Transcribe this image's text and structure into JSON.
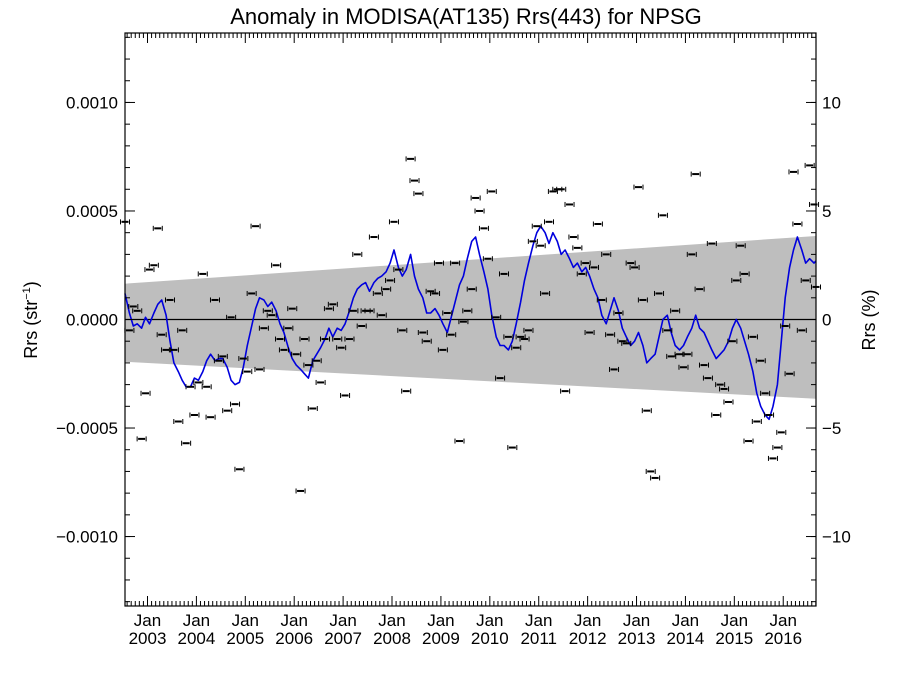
{
  "chart_data": {
    "type": "scatter",
    "title": "Anomaly in MODISA(AT135) Rrs(443) for NPSG",
    "ylabel_left_base": "Rrs (str",
    "ylabel_left_sup": "−1",
    "ylabel_left_close": ")",
    "ylabel_right": "Rrs (%)",
    "ylim_left": [
      -0.00132,
      0.00132
    ],
    "ylim_right": [
      -13.2,
      13.2
    ],
    "xlim": [
      2002.54,
      2016.67
    ],
    "y_ticks_left": [
      {
        "v": 0.001,
        "label": "0.0010"
      },
      {
        "v": 0.0005,
        "label": "0.0005"
      },
      {
        "v": 0.0,
        "label": "0.0000"
      },
      {
        "v": -0.0005,
        "label": "−0.0005"
      },
      {
        "v": -0.001,
        "label": "−0.0010"
      }
    ],
    "y_ticks_right": [
      {
        "v": 10,
        "label": "10"
      },
      {
        "v": 5,
        "label": "5"
      },
      {
        "v": 0,
        "label": "0"
      },
      {
        "v": -5,
        "label": "−5"
      },
      {
        "v": -10,
        "label": "−10"
      }
    ],
    "x_ticks": [
      {
        "x": 2003.0,
        "month": "Jan",
        "year": "2003"
      },
      {
        "x": 2004.0,
        "month": "Jan",
        "year": "2004"
      },
      {
        "x": 2005.0,
        "month": "Jan",
        "year": "2005"
      },
      {
        "x": 2006.0,
        "month": "Jan",
        "year": "2006"
      },
      {
        "x": 2007.0,
        "month": "Jan",
        "year": "2007"
      },
      {
        "x": 2008.0,
        "month": "Jan",
        "year": "2008"
      },
      {
        "x": 2009.0,
        "month": "Jan",
        "year": "2009"
      },
      {
        "x": 2010.0,
        "month": "Jan",
        "year": "2010"
      },
      {
        "x": 2011.0,
        "month": "Jan",
        "year": "2011"
      },
      {
        "x": 2012.0,
        "month": "Jan",
        "year": "2012"
      },
      {
        "x": 2013.0,
        "month": "Jan",
        "year": "2013"
      },
      {
        "x": 2014.0,
        "month": "Jan",
        "year": "2014"
      },
      {
        "x": 2015.0,
        "month": "Jan",
        "year": "2015"
      },
      {
        "x": 2016.0,
        "month": "Jan",
        "year": "2016"
      }
    ],
    "band": {
      "upper": [
        [
          2002.54,
          0.000165
        ],
        [
          2016.67,
          0.000385
        ]
      ],
      "lower": [
        [
          2002.54,
          -0.000195
        ],
        [
          2016.67,
          -0.000365
        ]
      ],
      "color": "#bebebe"
    },
    "zero_line": 0.0,
    "grid": false,
    "legend": "none",
    "colors": {
      "points": "#000000",
      "line": "#0000dd",
      "band": "#bebebe"
    },
    "points": [
      [
        2002.54,
        0.00045
      ],
      [
        2002.63,
        -5e-05
      ],
      [
        2002.71,
        6e-05
      ],
      [
        2002.79,
        4e-05
      ],
      [
        2002.88,
        -0.00055
      ],
      [
        2002.96,
        -0.00034
      ],
      [
        2003.04,
        0.00023
      ],
      [
        2003.13,
        0.00025
      ],
      [
        2003.21,
        0.00042
      ],
      [
        2003.29,
        -7e-05
      ],
      [
        2003.38,
        -0.00014
      ],
      [
        2003.46,
        9e-05
      ],
      [
        2003.54,
        -0.00014
      ],
      [
        2003.63,
        -0.00047
      ],
      [
        2003.71,
        -5e-05
      ],
      [
        2003.79,
        -0.00057
      ],
      [
        2003.88,
        -0.00031
      ],
      [
        2003.96,
        -0.00044
      ],
      [
        2004.04,
        -0.00029
      ],
      [
        2004.13,
        0.00021
      ],
      [
        2004.21,
        -0.00031
      ],
      [
        2004.29,
        -0.00045
      ],
      [
        2004.38,
        9e-05
      ],
      [
        2004.46,
        -0.00019
      ],
      [
        2004.54,
        -0.00017
      ],
      [
        2004.63,
        -0.00042
      ],
      [
        2004.71,
        1e-05
      ],
      [
        2004.79,
        -0.00039
      ],
      [
        2004.88,
        -0.00069
      ],
      [
        2004.96,
        -0.00018
      ],
      [
        2005.04,
        -0.00024
      ],
      [
        2005.13,
        0.00012
      ],
      [
        2005.21,
        0.00043
      ],
      [
        2005.29,
        -0.00023
      ],
      [
        2005.38,
        -4e-05
      ],
      [
        2005.46,
        4e-05
      ],
      [
        2005.54,
        2e-05
      ],
      [
        2005.63,
        0.00025
      ],
      [
        2005.71,
        -9e-05
      ],
      [
        2005.79,
        -0.00014
      ],
      [
        2005.88,
        -4e-05
      ],
      [
        2005.96,
        5e-05
      ],
      [
        2006.04,
        -0.00016
      ],
      [
        2006.13,
        -0.00079
      ],
      [
        2006.21,
        -9e-05
      ],
      [
        2006.29,
        -0.00021
      ],
      [
        2006.38,
        -0.00041
      ],
      [
        2006.46,
        -0.00019
      ],
      [
        2006.54,
        -0.00029
      ],
      [
        2006.63,
        -9e-05
      ],
      [
        2006.71,
        5e-05
      ],
      [
        2006.79,
        7e-05
      ],
      [
        2006.88,
        -9e-05
      ],
      [
        2006.96,
        -0.00013
      ],
      [
        2007.04,
        -0.00035
      ],
      [
        2007.13,
        -9e-05
      ],
      [
        2007.21,
        4e-05
      ],
      [
        2007.29,
        0.0003
      ],
      [
        2007.38,
        -3e-05
      ],
      [
        2007.46,
        4e-05
      ],
      [
        2007.54,
        4e-05
      ],
      [
        2007.63,
        0.00038
      ],
      [
        2007.71,
        0.00012
      ],
      [
        2007.79,
        2e-05
      ],
      [
        2007.88,
        0.00014
      ],
      [
        2007.96,
        0.00018
      ],
      [
        2008.04,
        0.00045
      ],
      [
        2008.13,
        0.00023
      ],
      [
        2008.21,
        -5e-05
      ],
      [
        2008.29,
        -0.00033
      ],
      [
        2008.38,
        0.00074
      ],
      [
        2008.46,
        0.00064
      ],
      [
        2008.54,
        0.00058
      ],
      [
        2008.63,
        -6e-05
      ],
      [
        2008.71,
        -0.0001
      ],
      [
        2008.79,
        0.00013
      ],
      [
        2008.88,
        0.00012
      ],
      [
        2008.96,
        0.00026
      ],
      [
        2009.04,
        -0.00014
      ],
      [
        2009.13,
        3e-05
      ],
      [
        2009.21,
        -7e-05
      ],
      [
        2009.29,
        0.00026
      ],
      [
        2009.38,
        -0.00056
      ],
      [
        2009.46,
        -1e-05
      ],
      [
        2009.54,
        4e-05
      ],
      [
        2009.63,
        0.00014
      ],
      [
        2009.71,
        0.00056
      ],
      [
        2009.79,
        0.0005
      ],
      [
        2009.88,
        0.00042
      ],
      [
        2009.96,
        0.00028
      ],
      [
        2010.04,
        0.00059
      ],
      [
        2010.13,
        1e-05
      ],
      [
        2010.21,
        -0.00027
      ],
      [
        2010.29,
        0.00021
      ],
      [
        2010.38,
        -8e-05
      ],
      [
        2010.46,
        -0.00059
      ],
      [
        2010.54,
        -0.00013
      ],
      [
        2010.63,
        -8e-05
      ],
      [
        2010.71,
        -9e-05
      ],
      [
        2010.79,
        -5e-05
      ],
      [
        2010.88,
        0.00036
      ],
      [
        2010.96,
        0.00043
      ],
      [
        2011.04,
        0.00034
      ],
      [
        2011.13,
        0.00012
      ],
      [
        2011.21,
        0.00045
      ],
      [
        2011.29,
        0.00059
      ],
      [
        2011.38,
        0.0006
      ],
      [
        2011.46,
        0.0006
      ],
      [
        2011.54,
        -0.00033
      ],
      [
        2011.63,
        0.00053
      ],
      [
        2011.71,
        0.00038
      ],
      [
        2011.79,
        0.00033
      ],
      [
        2011.88,
        0.00021
      ],
      [
        2011.96,
        0.00026
      ],
      [
        2012.04,
        -6e-05
      ],
      [
        2012.13,
        0.00024
      ],
      [
        2012.21,
        0.00044
      ],
      [
        2012.29,
        9e-05
      ],
      [
        2012.38,
        0.0003
      ],
      [
        2012.46,
        -7e-05
      ],
      [
        2012.54,
        -0.00023
      ],
      [
        2012.63,
        3e-05
      ],
      [
        2012.71,
        -0.0001
      ],
      [
        2012.79,
        -0.00011
      ],
      [
        2012.88,
        0.00026
      ],
      [
        2012.96,
        0.00024
      ],
      [
        2013.04,
        0.00061
      ],
      [
        2013.13,
        9e-05
      ],
      [
        2013.21,
        -0.00042
      ],
      [
        2013.29,
        -0.0007
      ],
      [
        2013.38,
        -0.00073
      ],
      [
        2013.46,
        0.00012
      ],
      [
        2013.54,
        0.00048
      ],
      [
        2013.63,
        -5e-05
      ],
      [
        2013.71,
        -0.00017
      ],
      [
        2013.79,
        4e-05
      ],
      [
        2013.88,
        -0.00016
      ],
      [
        2013.96,
        -0.00022
      ],
      [
        2014.04,
        -0.00016
      ],
      [
        2014.13,
        0.0003
      ],
      [
        2014.21,
        0.00067
      ],
      [
        2014.29,
        0.00014
      ],
      [
        2014.38,
        -0.00021
      ],
      [
        2014.46,
        -0.00027
      ],
      [
        2014.54,
        0.00035
      ],
      [
        2014.63,
        -0.00044
      ],
      [
        2014.71,
        -0.0003
      ],
      [
        2014.79,
        -0.00032
      ],
      [
        2014.88,
        -0.00038
      ],
      [
        2014.96,
        -0.0001
      ],
      [
        2015.04,
        0.00018
      ],
      [
        2015.13,
        0.00034
      ],
      [
        2015.21,
        0.00021
      ],
      [
        2015.29,
        -0.00056
      ],
      [
        2015.38,
        -8e-05
      ],
      [
        2015.46,
        -0.00047
      ],
      [
        2015.54,
        -0.00019
      ],
      [
        2015.63,
        -0.00034
      ],
      [
        2015.71,
        -0.00044
      ],
      [
        2015.79,
        -0.00064
      ],
      [
        2015.88,
        -0.00059
      ],
      [
        2015.96,
        -0.00052
      ],
      [
        2016.04,
        -3e-05
      ],
      [
        2016.13,
        -0.00025
      ],
      [
        2016.21,
        0.00068
      ],
      [
        2016.29,
        0.00044
      ],
      [
        2016.38,
        -5e-05
      ],
      [
        2016.46,
        0.00018
      ],
      [
        2016.54,
        0.00071
      ],
      [
        2016.63,
        0.00053
      ],
      [
        2016.67,
        0.00015
      ]
    ],
    "smoothed_line": [
      [
        2002.54,
        0.00012
      ],
      [
        2002.63,
        3e-05
      ],
      [
        2002.71,
        -3e-05
      ],
      [
        2002.79,
        -2e-05
      ],
      [
        2002.88,
        -4e-05
      ],
      [
        2002.96,
        1e-05
      ],
      [
        2003.04,
        -2e-05
      ],
      [
        2003.13,
        3e-05
      ],
      [
        2003.21,
        7e-05
      ],
      [
        2003.29,
        9e-05
      ],
      [
        2003.38,
        2e-05
      ],
      [
        2003.46,
        -0.0001
      ],
      [
        2003.54,
        -0.0002
      ],
      [
        2003.63,
        -0.00024
      ],
      [
        2003.71,
        -0.00028
      ],
      [
        2003.79,
        -0.00031
      ],
      [
        2003.88,
        -0.00031
      ],
      [
        2003.96,
        -0.00027
      ],
      [
        2004.04,
        -0.00028
      ],
      [
        2004.13,
        -0.00024
      ],
      [
        2004.21,
        -0.00019
      ],
      [
        2004.29,
        -0.00016
      ],
      [
        2004.38,
        -0.00019
      ],
      [
        2004.46,
        -0.00018
      ],
      [
        2004.54,
        -0.00018
      ],
      [
        2004.63,
        -0.00022
      ],
      [
        2004.71,
        -0.00028
      ],
      [
        2004.79,
        -0.0003
      ],
      [
        2004.88,
        -0.00029
      ],
      [
        2004.96,
        -0.00022
      ],
      [
        2005.04,
        -0.00012
      ],
      [
        2005.13,
        -3e-05
      ],
      [
        2005.21,
        5e-05
      ],
      [
        2005.29,
        0.0001
      ],
      [
        2005.38,
        9e-05
      ],
      [
        2005.46,
        6e-05
      ],
      [
        2005.54,
        8e-05
      ],
      [
        2005.63,
        4e-05
      ],
      [
        2005.71,
        -2e-05
      ],
      [
        2005.79,
        -6e-05
      ],
      [
        2005.88,
        -0.00013
      ],
      [
        2005.96,
        -0.00018
      ],
      [
        2006.04,
        -0.00021
      ],
      [
        2006.13,
        -0.00023
      ],
      [
        2006.21,
        -0.00025
      ],
      [
        2006.29,
        -0.00027
      ],
      [
        2006.38,
        -0.00019
      ],
      [
        2006.46,
        -0.00016
      ],
      [
        2006.54,
        -0.00013
      ],
      [
        2006.63,
        -9e-05
      ],
      [
        2006.71,
        -4e-05
      ],
      [
        2006.79,
        -8e-05
      ],
      [
        2006.88,
        -4e-05
      ],
      [
        2006.96,
        -5e-05
      ],
      [
        2007.04,
        -2e-05
      ],
      [
        2007.13,
        4e-05
      ],
      [
        2007.21,
        0.0001
      ],
      [
        2007.29,
        0.00014
      ],
      [
        2007.38,
        0.00016
      ],
      [
        2007.46,
        0.00017
      ],
      [
        2007.54,
        0.00013
      ],
      [
        2007.63,
        0.00017
      ],
      [
        2007.71,
        0.00019
      ],
      [
        2007.79,
        0.0002
      ],
      [
        2007.88,
        0.00022
      ],
      [
        2007.96,
        0.00026
      ],
      [
        2008.04,
        0.00032
      ],
      [
        2008.13,
        0.00024
      ],
      [
        2008.21,
        0.0002
      ],
      [
        2008.29,
        0.00023
      ],
      [
        2008.38,
        0.0003
      ],
      [
        2008.46,
        0.0002
      ],
      [
        2008.54,
        0.00014
      ],
      [
        2008.63,
        0.0001
      ],
      [
        2008.71,
        3e-05
      ],
      [
        2008.79,
        3e-05
      ],
      [
        2008.88,
        5e-05
      ],
      [
        2008.96,
        2e-05
      ],
      [
        2009.04,
        -2e-05
      ],
      [
        2009.13,
        -6e-05
      ],
      [
        2009.21,
        1e-05
      ],
      [
        2009.29,
        8e-05
      ],
      [
        2009.38,
        0.00016
      ],
      [
        2009.46,
        0.0002
      ],
      [
        2009.54,
        0.00028
      ],
      [
        2009.63,
        0.00036
      ],
      [
        2009.71,
        0.00038
      ],
      [
        2009.79,
        0.0003
      ],
      [
        2009.88,
        0.00022
      ],
      [
        2009.96,
        0.00014
      ],
      [
        2010.04,
        2e-05
      ],
      [
        2010.13,
        -8e-05
      ],
      [
        2010.21,
        -0.00012
      ],
      [
        2010.29,
        -0.00012
      ],
      [
        2010.38,
        -0.00014
      ],
      [
        2010.46,
        -0.0001
      ],
      [
        2010.54,
        -2e-05
      ],
      [
        2010.63,
        8e-05
      ],
      [
        2010.71,
        0.00018
      ],
      [
        2010.79,
        0.00026
      ],
      [
        2010.88,
        0.00034
      ],
      [
        2010.96,
        0.0004
      ],
      [
        2011.04,
        0.00043
      ],
      [
        2011.13,
        0.0004
      ],
      [
        2011.21,
        0.00035
      ],
      [
        2011.29,
        0.0004
      ],
      [
        2011.38,
        0.00036
      ],
      [
        2011.46,
        0.0003
      ],
      [
        2011.54,
        0.00032
      ],
      [
        2011.63,
        0.00028
      ],
      [
        2011.71,
        0.00024
      ],
      [
        2011.79,
        0.00026
      ],
      [
        2011.88,
        0.00022
      ],
      [
        2011.96,
        0.00024
      ],
      [
        2012.04,
        0.0002
      ],
      [
        2012.13,
        0.00014
      ],
      [
        2012.21,
        0.0001
      ],
      [
        2012.29,
        2e-05
      ],
      [
        2012.38,
        -2e-05
      ],
      [
        2012.46,
        4e-05
      ],
      [
        2012.54,
        0.0001
      ],
      [
        2012.63,
        4e-05
      ],
      [
        2012.71,
        -4e-05
      ],
      [
        2012.79,
        -8e-05
      ],
      [
        2012.88,
        -0.00012
      ],
      [
        2012.96,
        -0.0001
      ],
      [
        2013.04,
        -6e-05
      ],
      [
        2013.13,
        -0.00012
      ],
      [
        2013.21,
        -0.0002
      ],
      [
        2013.29,
        -0.00018
      ],
      [
        2013.38,
        -0.00016
      ],
      [
        2013.46,
        -8e-05
      ],
      [
        2013.54,
        0.0
      ],
      [
        2013.63,
        2e-05
      ],
      [
        2013.71,
        -6e-05
      ],
      [
        2013.79,
        -0.00012
      ],
      [
        2013.88,
        -0.00014
      ],
      [
        2013.96,
        -0.00012
      ],
      [
        2014.04,
        -8e-05
      ],
      [
        2014.13,
        -4e-05
      ],
      [
        2014.21,
        2e-05
      ],
      [
        2014.29,
        -4e-05
      ],
      [
        2014.38,
        -6e-05
      ],
      [
        2014.46,
        -0.0001
      ],
      [
        2014.54,
        -0.00014
      ],
      [
        2014.63,
        -0.00018
      ],
      [
        2014.71,
        -0.00016
      ],
      [
        2014.79,
        -0.00014
      ],
      [
        2014.88,
        -0.0001
      ],
      [
        2014.96,
        -4e-05
      ],
      [
        2015.04,
        0.0
      ],
      [
        2015.13,
        -4e-05
      ],
      [
        2015.21,
        -0.0001
      ],
      [
        2015.29,
        -0.00016
      ],
      [
        2015.38,
        -0.00024
      ],
      [
        2015.46,
        -0.00034
      ],
      [
        2015.54,
        -0.0004
      ],
      [
        2015.63,
        -0.00044
      ],
      [
        2015.71,
        -0.00046
      ],
      [
        2015.79,
        -0.0004
      ],
      [
        2015.88,
        -0.0003
      ],
      [
        2015.96,
        -0.0001
      ],
      [
        2016.04,
        0.0001
      ],
      [
        2016.13,
        0.00024
      ],
      [
        2016.21,
        0.00032
      ],
      [
        2016.29,
        0.00038
      ],
      [
        2016.38,
        0.00032
      ],
      [
        2016.46,
        0.00026
      ],
      [
        2016.54,
        0.00028
      ],
      [
        2016.63,
        0.00026
      ],
      [
        2016.67,
        0.00027
      ]
    ]
  }
}
